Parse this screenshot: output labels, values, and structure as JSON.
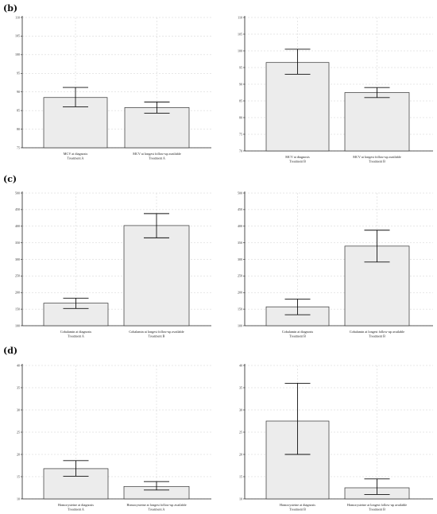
{
  "panels": [
    {
      "label": "(b)"
    },
    {
      "label": "(c)"
    },
    {
      "label": "(d)"
    }
  ],
  "colors": {
    "bar_fill": "#ececec",
    "bar_stroke": "#333333",
    "axis": "#222222",
    "grid": "#cfcfcf"
  },
  "chart_data": [
    {
      "type": "bar",
      "panel": "(b)",
      "categories": [
        [
          "MCV at diagnosis",
          "Treatment A"
        ],
        [
          "MCV at longest follow-up available",
          "Treatment A"
        ]
      ],
      "values": [
        88.5,
        85.8
      ],
      "err_low": [
        86.0,
        84.3
      ],
      "err_high": [
        91.2,
        87.3
      ],
      "ylim": [
        75,
        110
      ],
      "ticks": [
        75,
        80,
        85,
        90,
        95,
        100,
        105,
        110
      ],
      "grid": true,
      "title": "",
      "xlabel": "",
      "ylabel": ""
    },
    {
      "type": "bar",
      "panel": "(b)",
      "categories": [
        [
          "MCV at diagnosis",
          "Treatment B"
        ],
        [
          "MCV at longest follow-up available",
          "Treatment B"
        ]
      ],
      "values": [
        96.5,
        87.5
      ],
      "err_low": [
        93.0,
        86.0
      ],
      "err_high": [
        100.5,
        89.0
      ],
      "ylim": [
        70,
        110
      ],
      "ticks": [
        70,
        75,
        80,
        85,
        90,
        95,
        100,
        105,
        110
      ],
      "grid": true,
      "title": "",
      "xlabel": "",
      "ylabel": ""
    },
    {
      "type": "bar",
      "panel": "(c)",
      "categories": [
        [
          "Cobalamin at diagnosis",
          "Treatment A"
        ],
        [
          "Cobalamin at longest follow-up available",
          "Treatment B"
        ]
      ],
      "values": [
        168,
        402
      ],
      "err_low": [
        152,
        365
      ],
      "err_high": [
        183,
        438
      ],
      "ylim": [
        100,
        500
      ],
      "ticks": [
        100,
        150,
        200,
        250,
        300,
        350,
        400,
        450,
        500
      ],
      "grid": true,
      "title": "",
      "xlabel": "",
      "ylabel": ""
    },
    {
      "type": "bar",
      "panel": "(c)",
      "categories": [
        [
          "Cobalamin at diagnosis",
          "Treatment B"
        ],
        [
          "Cobalamin at longest follow-up available",
          "Treatment B"
        ]
      ],
      "values": [
        157,
        340
      ],
      "err_low": [
        133,
        292
      ],
      "err_high": [
        180,
        388
      ],
      "ylim": [
        100,
        500
      ],
      "ticks": [
        100,
        150,
        200,
        250,
        300,
        350,
        400,
        450,
        500
      ],
      "grid": true,
      "title": "",
      "xlabel": "",
      "ylabel": ""
    },
    {
      "type": "bar",
      "panel": "(d)",
      "categories": [
        [
          "Homocysteine at diagnosis",
          "Treatment A"
        ],
        [
          "Homocysteine at longest follow-up available",
          "Treatment A"
        ]
      ],
      "values": [
        16.8,
        12.8
      ],
      "err_low": [
        15.1,
        12.0
      ],
      "err_high": [
        18.6,
        13.9
      ],
      "ylim": [
        10,
        40
      ],
      "ticks": [
        10,
        15,
        20,
        25,
        30,
        35,
        40
      ],
      "grid": true,
      "title": "",
      "xlabel": "",
      "ylabel": ""
    },
    {
      "type": "bar",
      "panel": "(d)",
      "categories": [
        [
          "Homocysteine at diagnosis",
          "Treatment B"
        ],
        [
          "Homocysteine at longest follow-up available",
          "Treatment B"
        ]
      ],
      "values": [
        27.5,
        12.5
      ],
      "err_low": [
        20.0,
        11.0
      ],
      "err_high": [
        36.0,
        14.5
      ],
      "ylim": [
        10,
        40
      ],
      "ticks": [
        10,
        15,
        20,
        25,
        30,
        35,
        40
      ],
      "grid": true,
      "title": "",
      "xlabel": "",
      "ylabel": ""
    }
  ]
}
